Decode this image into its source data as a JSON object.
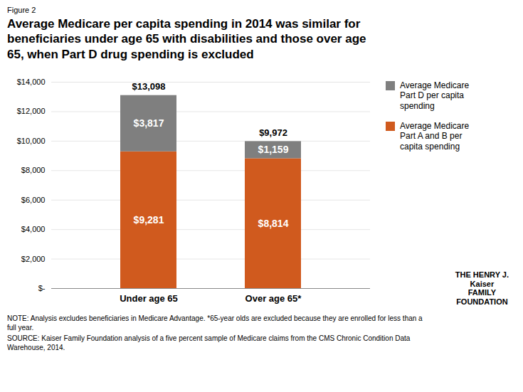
{
  "chart_data": {
    "type": "bar",
    "stacked": true,
    "title": "Average Medicare per capita spending in 2014 was similar for\nbeneficiaries under age 65 with disabilities and those over age\n65, when Part D drug spending is excluded",
    "annotations": [
      "Figure 2",
      "NOTE: Analysis excludes beneficiaries in Medicare Advantage. *65-year olds are excluded because they are enrolled for less than a\nfull year.",
      "SOURCE: Kaiser Family Foundation analysis of a five percent sample of Medicare claims from the CMS Chronic Condition Data\nWarehouse, 2014.",
      "THE HENRY J.\nKaiser\nFAMILY\nFOUNDATION"
    ],
    "categories": [
      "Under age 65",
      "Over age 65*"
    ],
    "series": [
      {
        "name": "Average Medicare\nPart A and B per\ncapita spending",
        "color": "#D05A1E",
        "values": [
          9281,
          8814
        ],
        "value_labels": [
          "$9,281",
          "$8,814"
        ]
      },
      {
        "name": "Average Medicare\nPart D per capita\nspending",
        "color": "#7F7F7F",
        "values": [
          3817,
          1159
        ],
        "value_labels": [
          "$3,817",
          "$1,159"
        ]
      }
    ],
    "totals": [
      13098,
      9972
    ],
    "total_labels": [
      "$13,098",
      "$9,972"
    ],
    "ylim": [
      0,
      14000
    ],
    "yticks": [
      {
        "value": 0,
        "label": "$-"
      },
      {
        "value": 2000,
        "label": "$2,000"
      },
      {
        "value": 4000,
        "label": "$4,000"
      },
      {
        "value": 6000,
        "label": "$6,000"
      },
      {
        "value": 8000,
        "label": "$8,000"
      },
      {
        "value": 10000,
        "label": "$10,000"
      },
      {
        "value": 12000,
        "label": "$12,000"
      },
      {
        "value": 14000,
        "label": "$14,000"
      }
    ],
    "grid": true,
    "data_labels": true,
    "legend": "right"
  }
}
